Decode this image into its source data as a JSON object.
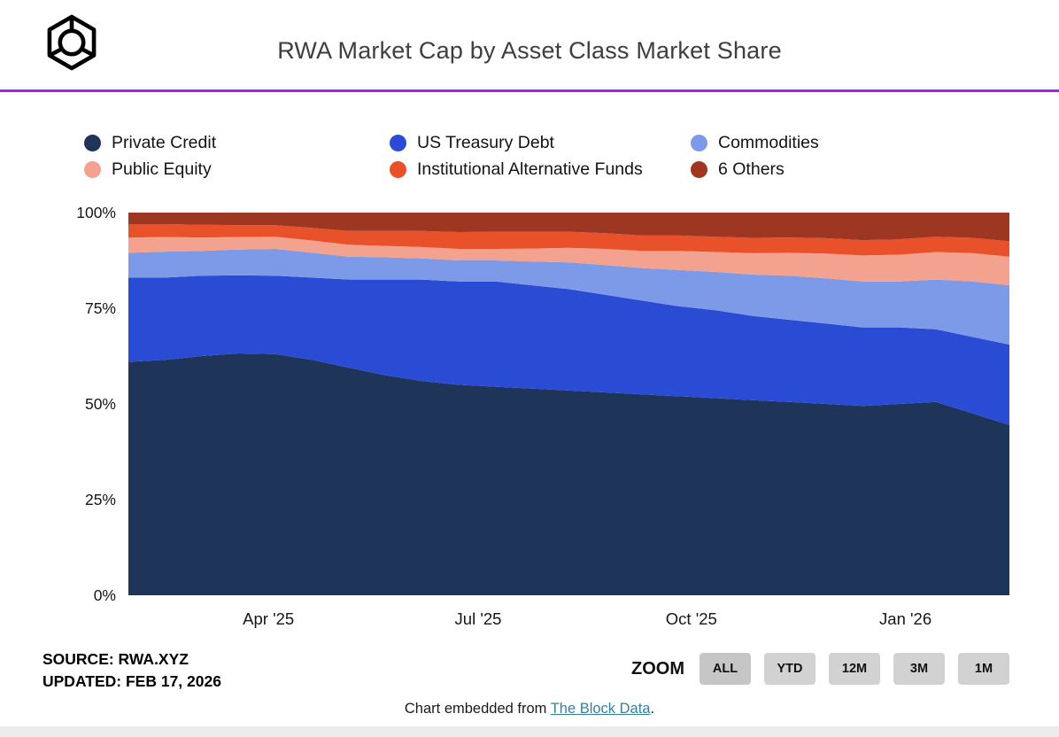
{
  "header": {
    "title": "RWA Market Cap by Asset Class Market Share"
  },
  "colors": {
    "divider": "#a922f2",
    "link": "#36809f",
    "zoom_button_bg": "#d2d2d2",
    "background": "#ffffff"
  },
  "chart_data": {
    "type": "area",
    "stacked": true,
    "normalized_percent": true,
    "title": "RWA Market Cap by Asset Class Market Share",
    "ylim": [
      0,
      100
    ],
    "grid": false,
    "legend_position": "top",
    "y_ticks": [
      {
        "value": 0,
        "label": "0%"
      },
      {
        "value": 25,
        "label": "25%"
      },
      {
        "value": 50,
        "label": "50%"
      },
      {
        "value": 75,
        "label": "75%"
      },
      {
        "value": 100,
        "label": "100%"
      }
    ],
    "x_ticks": [
      {
        "position": 0.159,
        "label": "Apr '25"
      },
      {
        "position": 0.397,
        "label": "Jul '25"
      },
      {
        "position": 0.639,
        "label": "Oct '25"
      },
      {
        "position": 0.882,
        "label": "Jan '26"
      }
    ],
    "series": [
      {
        "name": "Private Credit",
        "color": "#1e3459",
        "values": [
          61,
          61.5,
          62.5,
          63.5,
          63,
          61.5,
          59.5,
          57.5,
          56,
          55,
          54.5,
          54,
          53.5,
          53,
          52.5,
          52,
          51.5,
          51,
          50.5,
          50,
          49.5,
          50,
          50.5,
          47.5,
          44.5
        ]
      },
      {
        "name": "US Treasury Debt",
        "color": "#2a4bd4",
        "values": [
          22,
          21.5,
          21,
          20.5,
          20.5,
          21.5,
          23,
          25,
          26.5,
          27,
          27.5,
          27,
          26.5,
          25.5,
          24.5,
          23.5,
          23,
          22,
          21.5,
          21,
          20.5,
          20,
          19,
          20,
          21
        ]
      },
      {
        "name": "Commodities",
        "color": "#7d9ae8",
        "values": [
          6.5,
          6.8,
          6.5,
          6.8,
          7,
          6.5,
          6,
          5.8,
          5.5,
          5.5,
          5.5,
          6.2,
          7,
          7.8,
          8.5,
          9.5,
          10,
          10.8,
          11.5,
          11.8,
          12,
          12,
          13,
          14.5,
          15.5
        ]
      },
      {
        "name": "Public Equity",
        "color": "#f2a28f",
        "values": [
          4,
          3.8,
          3.5,
          3.3,
          3.2,
          3.2,
          3.1,
          3,
          3,
          3,
          3,
          3.4,
          3.8,
          4.2,
          4.5,
          5,
          5.2,
          5.6,
          6,
          6.5,
          6.8,
          7,
          7.2,
          7.4,
          7.5
        ]
      },
      {
        "name": "Institutional Alternative Funds",
        "color": "#e8512a",
        "values": [
          3.5,
          3.4,
          3.3,
          3.1,
          3,
          3.3,
          3.6,
          3.9,
          4.2,
          4.4,
          4.5,
          4.4,
          4.2,
          4.1,
          4,
          4,
          4,
          4,
          4,
          4,
          4,
          4,
          4,
          4,
          4
        ]
      },
      {
        "name": "6 Others",
        "color": "#9e3722",
        "values": [
          3,
          3,
          3.2,
          3.3,
          3.3,
          4,
          4.8,
          4.8,
          4.8,
          5.1,
          5,
          5,
          5,
          5.4,
          6,
          6,
          6.3,
          6.6,
          6.5,
          6.7,
          7.2,
          7,
          6.3,
          6.6,
          7.5
        ]
      }
    ]
  },
  "footer": {
    "source_label": "SOURCE: RWA.XYZ",
    "updated_label": "UPDATED: FEB 17, 2026",
    "zoom_label": "ZOOM",
    "zoom_buttons": [
      "ALL",
      "YTD",
      "12M",
      "3M",
      "1M"
    ],
    "embed_prefix": "Chart embedded from ",
    "embed_link_text": "The Block Data",
    "embed_suffix": "."
  }
}
